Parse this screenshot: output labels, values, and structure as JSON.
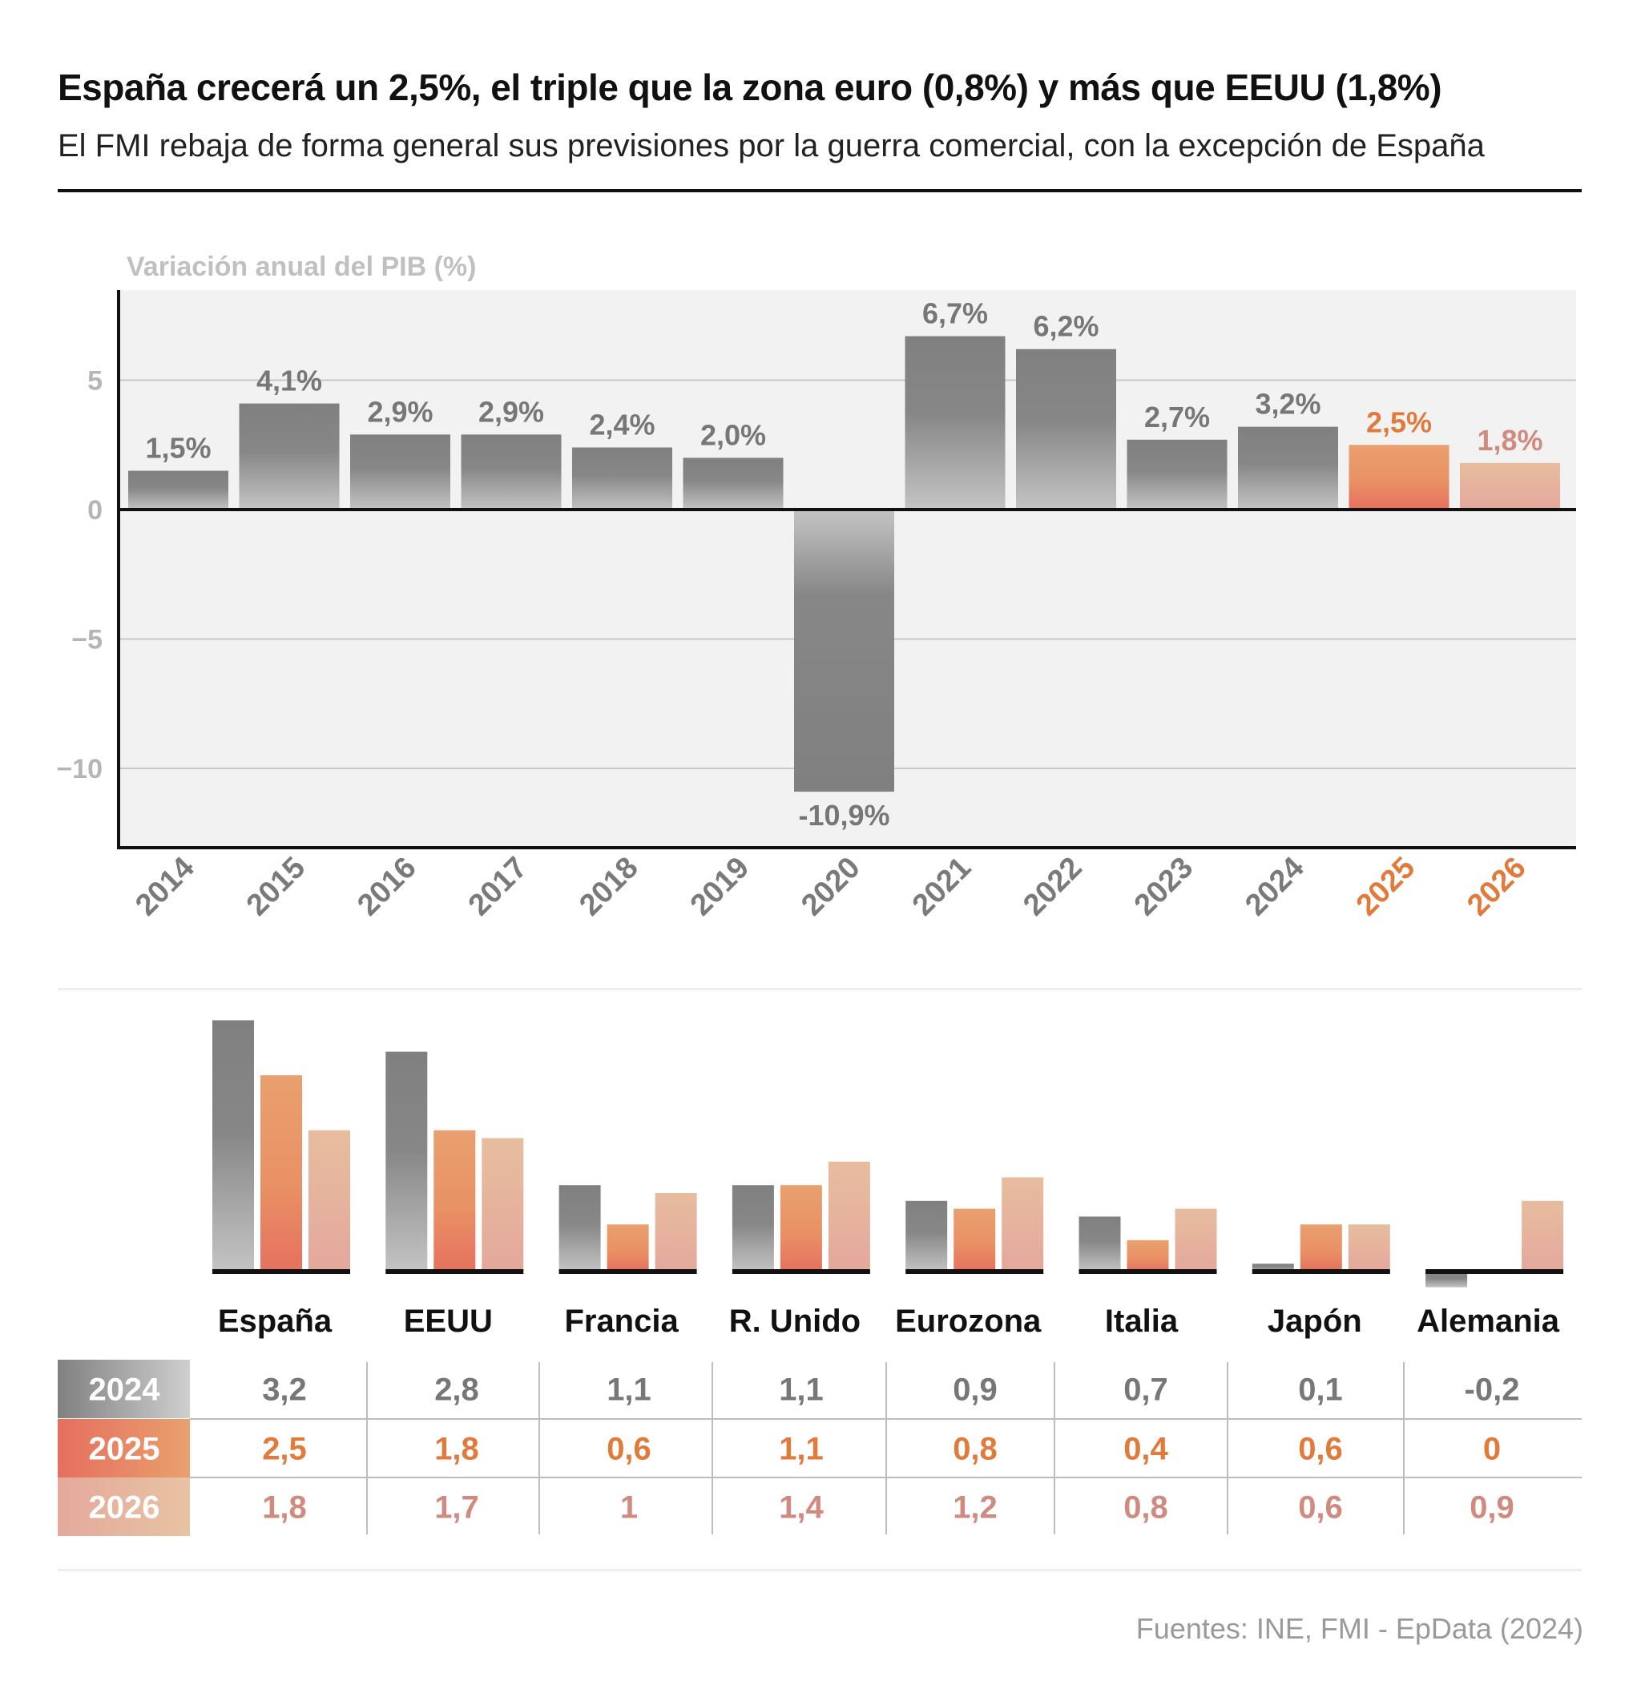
{
  "title": "España crecerá un 2,5%, el triple que la zona euro (0,8%) y más que EEUU (1,8%)",
  "subtitle": "El FMI rebaja de forma general sus previsiones por la guerra comercial, con la excepción de España",
  "source": "Fuentes: INE, FMI - EpData (2024)",
  "colors": {
    "historic": "#808080",
    "forecast_2025": "#e8996a",
    "forecast_2026": "#e6b9a0",
    "label_2025": "#e07b3c",
    "label_2026": "#d08a80",
    "axis_text": "#b5b5b5"
  },
  "chart_data": [
    {
      "type": "bar",
      "title": "",
      "ylabel": "Variación anual del PIB (%)",
      "xlabel": "",
      "ylim": [
        -13,
        8.5
      ],
      "yticks": [
        5,
        0,
        -5,
        -10
      ],
      "ytick_labels": [
        "5",
        "0",
        "−5",
        "−10"
      ],
      "grid": true,
      "categories": [
        "2014",
        "2015",
        "2016",
        "2017",
        "2018",
        "2019",
        "2020",
        "2021",
        "2022",
        "2023",
        "2024",
        "2025",
        "2026"
      ],
      "values": [
        1.5,
        4.1,
        2.9,
        2.9,
        2.4,
        2.0,
        -10.9,
        6.7,
        6.2,
        2.7,
        3.2,
        2.5,
        1.8
      ],
      "value_labels": [
        "1,5%",
        "4,1%",
        "2,9%",
        "2,9%",
        "2,4%",
        "2,0%",
        "-10,9%",
        "6,7%",
        "6,2%",
        "2,7%",
        "3,2%",
        "2,5%",
        "1,8%"
      ],
      "kind": [
        "historic",
        "historic",
        "historic",
        "historic",
        "historic",
        "historic",
        "historic",
        "historic",
        "historic",
        "historic",
        "historic",
        "forecast_2025",
        "forecast_2026"
      ]
    },
    {
      "type": "bar",
      "title": "",
      "categories": [
        "España",
        "EEUU",
        "Francia",
        "R. Unido",
        "Eurozona",
        "Italia",
        "Japón",
        "Alemania"
      ],
      "series": [
        {
          "name": "2024",
          "values": [
            3.2,
            2.8,
            1.1,
            1.1,
            0.9,
            0.7,
            0.1,
            -0.2
          ]
        },
        {
          "name": "2025",
          "values": [
            2.5,
            1.8,
            0.6,
            1.1,
            0.8,
            0.4,
            0.6,
            0
          ]
        },
        {
          "name": "2026",
          "values": [
            1.8,
            1.7,
            1,
            1.4,
            1.2,
            0.8,
            0.6,
            0.9
          ]
        }
      ]
    },
    {
      "type": "table",
      "columns": [
        "España",
        "EEUU",
        "Francia",
        "R. Unido",
        "Eurozona",
        "Italia",
        "Japón",
        "Alemania"
      ],
      "rows": [
        {
          "label": "2024",
          "cells": [
            "3,2",
            "2,8",
            "1,1",
            "1,1",
            "0,9",
            "0,7",
            "0,1",
            "-0,2"
          ]
        },
        {
          "label": "2025",
          "cells": [
            "2,5",
            "1,8",
            "0,6",
            "1,1",
            "0,8",
            "0,4",
            "0,6",
            "0"
          ]
        },
        {
          "label": "2026",
          "cells": [
            "1,8",
            "1,7",
            "1",
            "1,4",
            "1,2",
            "0,8",
            "0,6",
            "0,9"
          ]
        }
      ]
    }
  ]
}
